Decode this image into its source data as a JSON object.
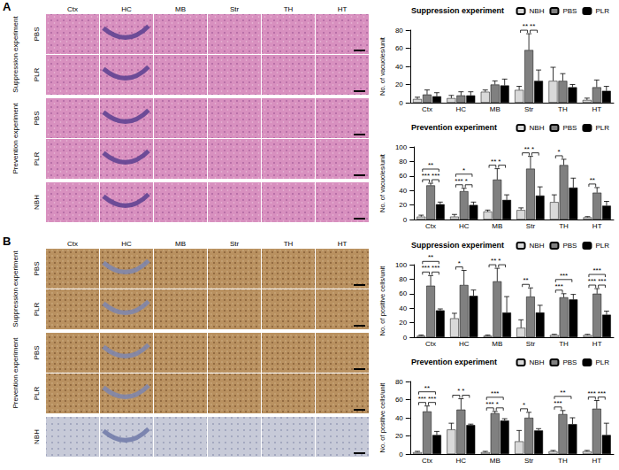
{
  "figure": {
    "panels": [
      {
        "letter": "A",
        "columns": [
          "Ctx",
          "HC",
          "MB",
          "Str",
          "TH",
          "HT"
        ],
        "groups": [
          {
            "name": "Suppression experiment",
            "rows": [
              "PBS",
              "PLR"
            ]
          },
          {
            "name": "Prevention experiment",
            "rows": [
              "PBS",
              "PLR"
            ]
          }
        ],
        "control_row": "NBH"
      },
      {
        "letter": "B",
        "columns": [
          "Ctx",
          "HC",
          "MB",
          "Str",
          "TH",
          "HT"
        ],
        "groups": [
          {
            "name": "Suppression experiment",
            "rows": [
              "PBS",
              "PLR"
            ]
          },
          {
            "name": "Prevention experiment",
            "rows": [
              "PBS",
              "PLR"
            ]
          }
        ],
        "control_row": "NBH"
      }
    ]
  },
  "chart_data": [
    {
      "type": "bar",
      "title": "Suppression experiment",
      "y_label": "No. of vacuoles/unit",
      "categories": [
        "Ctx",
        "HC",
        "MB",
        "Str",
        "TH",
        "HT"
      ],
      "series": [
        {
          "name": "NBH",
          "color": "#d9d9d9",
          "values": [
            4,
            5,
            12,
            14,
            24,
            3
          ],
          "errors": [
            2,
            3,
            2,
            4,
            15,
            2
          ]
        },
        {
          "name": "PBS",
          "color": "#808080",
          "values": [
            9,
            8,
            20,
            58,
            24,
            17
          ],
          "errors": [
            5,
            4,
            4,
            18,
            8,
            8
          ]
        },
        {
          "name": "PLR",
          "color": "#000000",
          "values": [
            7,
            8,
            19,
            24,
            17,
            13
          ],
          "errors": [
            4,
            4,
            7,
            12,
            3,
            5
          ]
        }
      ],
      "significance": [
        {
          "category": "Str",
          "pair": [
            "NBH",
            "PBS"
          ],
          "label": "**"
        },
        {
          "category": "Str",
          "pair": [
            "PBS",
            "PLR"
          ],
          "label": "**"
        }
      ],
      "ylim": [
        0,
        80
      ],
      "yticks": [
        0,
        20,
        40,
        60,
        80
      ],
      "grid": false,
      "legend": "top-right"
    },
    {
      "type": "bar",
      "title": "Prevention experiment",
      "y_label": "No. of vacuoles/unit",
      "categories": [
        "Ctx",
        "HC",
        "MB",
        "Str",
        "TH",
        "HT"
      ],
      "series": [
        {
          "name": "NBH",
          "color": "#d9d9d9",
          "values": [
            4,
            4,
            11,
            13,
            24,
            3
          ],
          "errors": [
            2,
            3,
            2,
            3,
            10,
            1
          ]
        },
        {
          "name": "PBS",
          "color": "#808080",
          "values": [
            47,
            39,
            55,
            70,
            75,
            37
          ],
          "errors": [
            3,
            4,
            15,
            17,
            8,
            7
          ]
        },
        {
          "name": "PLR",
          "color": "#000000",
          "values": [
            21,
            20,
            27,
            33,
            44,
            19
          ],
          "errors": [
            3,
            4,
            7,
            12,
            13,
            6
          ]
        }
      ],
      "significance": [
        {
          "category": "Ctx",
          "pair": [
            "NBH",
            "PLR"
          ],
          "label": "**"
        },
        {
          "category": "Ctx",
          "pair": [
            "NBH",
            "PBS"
          ],
          "label": "***"
        },
        {
          "category": "Ctx",
          "pair": [
            "PBS",
            "PLR"
          ],
          "label": "***"
        },
        {
          "category": "HC",
          "pair": [
            "NBH",
            "PLR"
          ],
          "label": "*"
        },
        {
          "category": "HC",
          "pair": [
            "NBH",
            "PBS"
          ],
          "label": "***"
        },
        {
          "category": "HC",
          "pair": [
            "PBS",
            "PLR"
          ],
          "label": "*"
        },
        {
          "category": "MB",
          "pair": [
            "NBH",
            "PBS"
          ],
          "label": "**"
        },
        {
          "category": "MB",
          "pair": [
            "PBS",
            "PLR"
          ],
          "label": "*"
        },
        {
          "category": "Str",
          "pair": [
            "NBH",
            "PBS"
          ],
          "label": "**"
        },
        {
          "category": "Str",
          "pair": [
            "PBS",
            "PLR"
          ],
          "label": "*"
        },
        {
          "category": "TH",
          "pair": [
            "NBH",
            "PBS"
          ],
          "label": "*"
        },
        {
          "category": "HT",
          "pair": [
            "NBH",
            "PBS"
          ],
          "label": "**"
        }
      ],
      "ylim": [
        0,
        100
      ],
      "yticks": [
        0,
        20,
        40,
        60,
        80,
        100
      ],
      "grid": false,
      "legend": "top-right"
    },
    {
      "type": "bar",
      "title": "Suppression experiment",
      "y_label": "No. of positive cells/unit",
      "categories": [
        "Ctx",
        "HC",
        "MB",
        "Str",
        "TH",
        "HT"
      ],
      "series": [
        {
          "name": "NBH",
          "color": "#d9d9d9",
          "values": [
            2,
            26,
            2,
            13,
            3,
            3
          ],
          "errors": [
            1,
            7,
            1,
            11,
            1,
            1
          ]
        },
        {
          "name": "PBS",
          "color": "#808080",
          "values": [
            71,
            72,
            77,
            56,
            55,
            60
          ],
          "errors": [
            14,
            20,
            18,
            12,
            5,
            7
          ]
        },
        {
          "name": "PLR",
          "color": "#000000",
          "values": [
            37,
            57,
            34,
            34,
            52,
            31
          ],
          "errors": [
            2,
            8,
            22,
            10,
            7,
            5
          ]
        }
      ],
      "significance": [
        {
          "category": "Ctx",
          "pair": [
            "NBH",
            "PLR"
          ],
          "label": "**"
        },
        {
          "category": "Ctx",
          "pair": [
            "NBH",
            "PBS"
          ],
          "label": "***"
        },
        {
          "category": "Ctx",
          "pair": [
            "PBS",
            "PLR"
          ],
          "label": "***"
        },
        {
          "category": "HC",
          "pair": [
            "NBH",
            "PBS"
          ],
          "label": "*"
        },
        {
          "category": "MB",
          "pair": [
            "NBH",
            "PBS"
          ],
          "label": "**"
        },
        {
          "category": "MB",
          "pair": [
            "PBS",
            "PLR"
          ],
          "label": "*"
        },
        {
          "category": "Str",
          "pair": [
            "NBH",
            "PBS"
          ],
          "label": "**"
        },
        {
          "category": "TH",
          "pair": [
            "NBH",
            "PLR"
          ],
          "label": "***"
        },
        {
          "category": "TH",
          "pair": [
            "NBH",
            "PBS"
          ],
          "label": "***"
        },
        {
          "category": "HT",
          "pair": [
            "NBH",
            "PLR"
          ],
          "label": "***"
        },
        {
          "category": "HT",
          "pair": [
            "NBH",
            "PBS"
          ],
          "label": "***"
        },
        {
          "category": "HT",
          "pair": [
            "PBS",
            "PLR"
          ],
          "label": "***"
        }
      ],
      "ylim": [
        0,
        100
      ],
      "yticks": [
        0,
        20,
        40,
        60,
        80,
        100
      ],
      "grid": false,
      "legend": "top-right"
    },
    {
      "type": "bar",
      "title": "Prevention experiment",
      "y_label": "No. of positive cells/unit",
      "categories": [
        "Ctx",
        "HC",
        "MB",
        "Str",
        "TH",
        "HT"
      ],
      "series": [
        {
          "name": "NBH",
          "color": "#d9d9d9",
          "values": [
            2,
            27,
            2,
            14,
            3,
            3
          ],
          "errors": [
            1,
            7,
            1,
            12,
            1,
            1
          ]
        },
        {
          "name": "PBS",
          "color": "#808080",
          "values": [
            47,
            49,
            45,
            40,
            44,
            50
          ],
          "errors": [
            6,
            12,
            2,
            6,
            4,
            9
          ]
        },
        {
          "name": "PLR",
          "color": "#000000",
          "values": [
            21,
            32,
            37,
            26,
            33,
            21
          ],
          "errors": [
            4,
            1,
            2,
            2,
            7,
            13
          ]
        }
      ],
      "significance": [
        {
          "category": "Ctx",
          "pair": [
            "NBH",
            "PLR"
          ],
          "label": "**"
        },
        {
          "category": "Ctx",
          "pair": [
            "NBH",
            "PBS"
          ],
          "label": "***"
        },
        {
          "category": "Ctx",
          "pair": [
            "PBS",
            "PLR"
          ],
          "label": "***"
        },
        {
          "category": "HC",
          "pair": [
            "NBH",
            "PBS"
          ],
          "label": "*"
        },
        {
          "category": "HC",
          "pair": [
            "PBS",
            "PLR"
          ],
          "label": "*"
        },
        {
          "category": "MB",
          "pair": [
            "NBH",
            "PLR"
          ],
          "label": "***"
        },
        {
          "category": "MB",
          "pair": [
            "NBH",
            "PBS"
          ],
          "label": "***"
        },
        {
          "category": "MB",
          "pair": [
            "PBS",
            "PLR"
          ],
          "label": "*"
        },
        {
          "category": "Str",
          "pair": [
            "NBH",
            "PBS"
          ],
          "label": "*"
        },
        {
          "category": "TH",
          "pair": [
            "NBH",
            "PLR"
          ],
          "label": "**"
        },
        {
          "category": "TH",
          "pair": [
            "NBH",
            "PBS"
          ],
          "label": "***"
        },
        {
          "category": "HT",
          "pair": [
            "NBH",
            "PBS"
          ],
          "label": "***"
        },
        {
          "category": "HT",
          "pair": [
            "PBS",
            "PLR"
          ],
          "label": "***"
        }
      ],
      "ylim": [
        0,
        80
      ],
      "yticks": [
        0,
        20,
        40,
        60,
        80
      ],
      "grid": false,
      "legend": "top-right"
    }
  ]
}
